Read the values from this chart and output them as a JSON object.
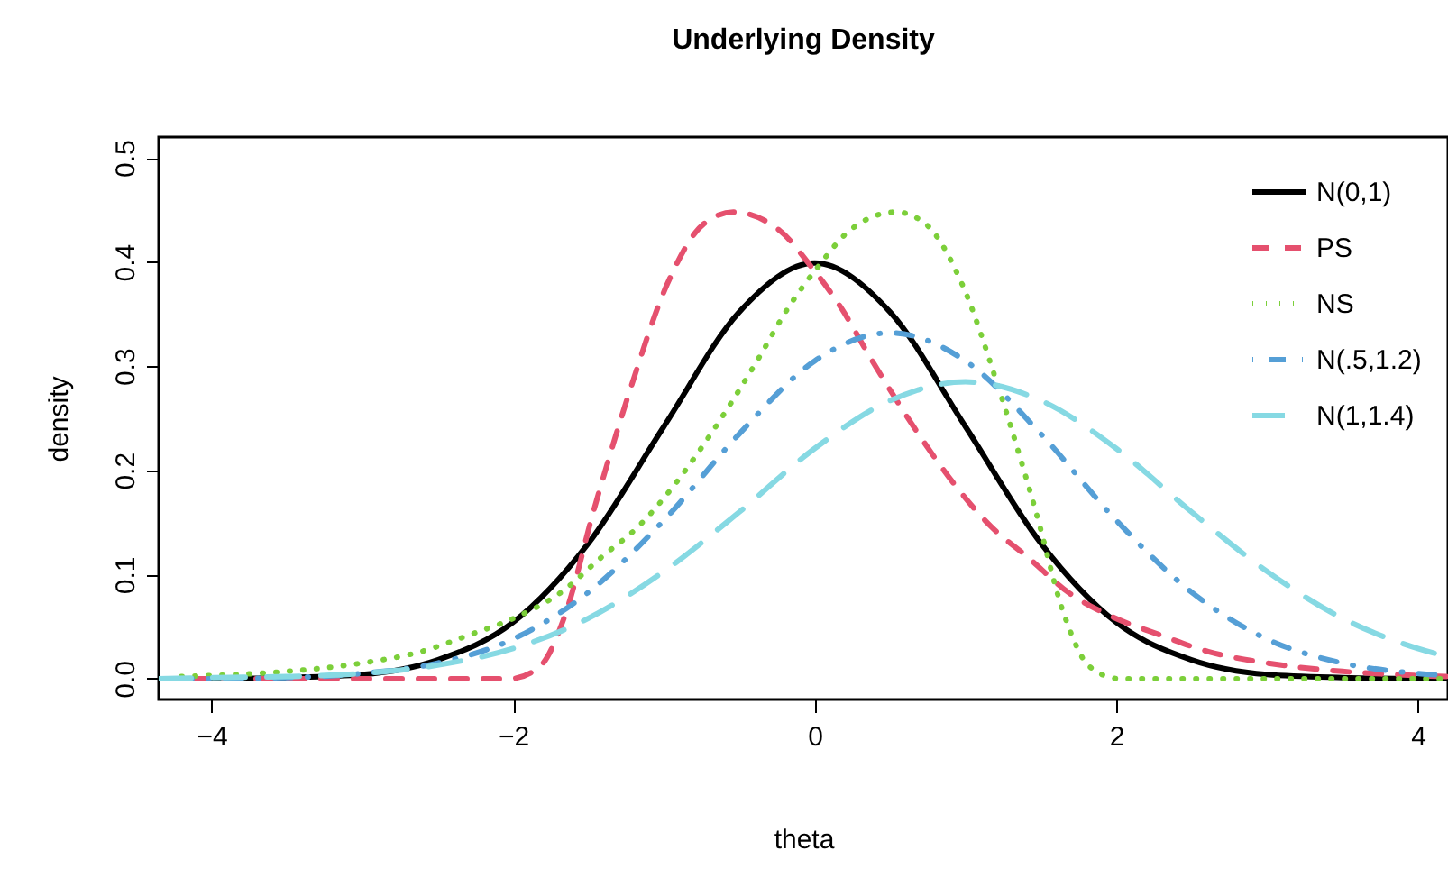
{
  "chart_data": {
    "type": "line",
    "title": "Underlying Density",
    "xlabel": "theta",
    "ylabel": "density",
    "xlim": [
      -4.35,
      4.2
    ],
    "ylim": [
      -0.02,
      0.52
    ],
    "xticks": [
      -4,
      -2,
      0,
      2,
      4
    ],
    "yticks": [
      {
        "value": 0,
        "label": "0.0"
      },
      {
        "value": 0.1,
        "label": "0.1"
      },
      {
        "value": 0.2,
        "label": "0.2"
      },
      {
        "value": 0.3,
        "label": "0.3"
      },
      {
        "value": 0.4,
        "label": "0.4"
      },
      {
        "value": 0.5,
        "label": "0.5"
      }
    ],
    "grid": false,
    "legend": "top right",
    "marker": "none",
    "series": [
      {
        "name": "N(0,1)",
        "color": "#000000",
        "line_style": "solid",
        "x": [
          -4.35,
          -4,
          -3.5,
          -3,
          -2.5,
          -2,
          -1.5,
          -1,
          -0.5,
          0,
          0.5,
          1,
          1.5,
          2,
          2.5,
          3,
          3.5,
          4,
          4.2
        ],
        "values": [
          0.0,
          0.0,
          0.001,
          0.004,
          0.018,
          0.054,
          0.13,
          0.242,
          0.352,
          0.399,
          0.352,
          0.242,
          0.13,
          0.054,
          0.018,
          0.004,
          0.001,
          0.0,
          0.0
        ]
      },
      {
        "name": "PS",
        "color": "#e5506e",
        "line_style": "dashed",
        "x": [
          -4.35,
          -3,
          -2.02,
          -1.82,
          -1.66,
          -1.46,
          -1.22,
          -0.98,
          -0.74,
          -0.54,
          -0.23,
          -0.02,
          0.18,
          0.37,
          0.54,
          0.73,
          0.93,
          1.17,
          1.41,
          1.69,
          1.98,
          2.29,
          2.61,
          3,
          3.5,
          4,
          4.2
        ],
        "values": [
          0,
          0,
          0,
          0.012,
          0.059,
          0.164,
          0.279,
          0.378,
          0.436,
          0.448,
          0.43,
          0.395,
          0.355,
          0.308,
          0.268,
          0.226,
          0.186,
          0.146,
          0.117,
          0.082,
          0.059,
          0.042,
          0.026,
          0.015,
          0.007,
          0.003,
          0.002
        ]
      },
      {
        "name": "NS",
        "color": "#7ccf3a",
        "line_style": "dotted",
        "x": [
          -4.2,
          -4,
          -3.5,
          -3,
          -2.61,
          -2.29,
          -1.98,
          -1.69,
          -1.41,
          -1.17,
          -0.93,
          -0.73,
          -0.54,
          -0.37,
          -0.18,
          0.02,
          0.23,
          0.54,
          0.74,
          0.98,
          1.22,
          1.46,
          1.66,
          1.82,
          2.02,
          3,
          4.2
        ],
        "values": [
          0.002,
          0.003,
          0.007,
          0.015,
          0.026,
          0.042,
          0.059,
          0.082,
          0.117,
          0.146,
          0.186,
          0.226,
          0.268,
          0.308,
          0.355,
          0.395,
          0.43,
          0.448,
          0.436,
          0.378,
          0.279,
          0.164,
          0.059,
          0.012,
          0,
          0,
          0
        ]
      },
      {
        "name": "N(.5,1.2)",
        "color": "#559fd6",
        "line_style": "dashdot",
        "x": [
          -4.35,
          -4,
          -3.5,
          -3,
          -2.5,
          -2,
          -1.5,
          -1,
          -0.5,
          0,
          0.5,
          1,
          1.5,
          2,
          2.5,
          3,
          3.5,
          4,
          4.2
        ],
        "values": [
          0.0,
          0.0,
          0.001,
          0.005,
          0.015,
          0.038,
          0.083,
          0.152,
          0.235,
          0.305,
          0.332,
          0.305,
          0.235,
          0.152,
          0.083,
          0.038,
          0.015,
          0.005,
          0.003
        ]
      },
      {
        "name": "N(1,1.4)",
        "color": "#86d9e3",
        "line_style": "longdash",
        "x": [
          -4.35,
          -4,
          -3.5,
          -3,
          -2.5,
          -2,
          -1.5,
          -1,
          -0.5,
          0,
          0.5,
          1,
          1.5,
          2,
          2.5,
          3,
          3.5,
          4,
          4.2
        ],
        "values": [
          0.0,
          0.001,
          0.002,
          0.005,
          0.013,
          0.029,
          0.058,
          0.103,
          0.16,
          0.221,
          0.267,
          0.285,
          0.267,
          0.221,
          0.16,
          0.103,
          0.058,
          0.029,
          0.021
        ]
      }
    ]
  }
}
